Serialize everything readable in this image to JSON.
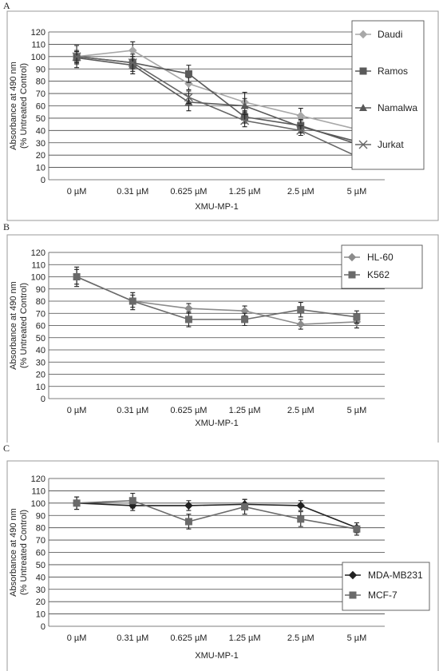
{
  "chart_data": [
    {
      "panel": "A",
      "type": "line",
      "categories": [
        "0 µM",
        "0.31 µM",
        "0.625 µM",
        "1.25 µM",
        "2.5 µM",
        "5 µM"
      ],
      "xlabel": "XMU-MP-1",
      "ylabel": "Absorbance at 490 nm\n(% Untreated Control)",
      "ylim": [
        0,
        120
      ],
      "yticks": [
        0,
        10,
        20,
        30,
        40,
        50,
        60,
        70,
        80,
        90,
        100,
        110,
        120
      ],
      "grid": true,
      "legend": "top-right, boxed",
      "series": [
        {
          "name": "Daudi",
          "marker": "diamond",
          "color": "#a8a8a8",
          "values": [
            100,
            105,
            78,
            63,
            52,
            41
          ],
          "errors": [
            5,
            7,
            5,
            8,
            6,
            10
          ]
        },
        {
          "name": "Ramos",
          "marker": "square",
          "color": "#5a5a5a",
          "values": [
            100,
            95,
            86,
            51,
            44,
            29
          ],
          "errors": [
            9,
            7,
            7,
            5,
            5,
            6
          ]
        },
        {
          "name": "Namalwa",
          "marker": "triangle",
          "color": "#585858",
          "values": [
            99,
            93,
            63,
            60,
            43,
            31
          ],
          "errors": [
            5,
            7,
            7,
            6,
            5,
            6
          ]
        },
        {
          "name": "Jurkat",
          "marker": "x",
          "color": "#666666",
          "values": [
            100,
            95,
            67,
            48,
            40,
            19
          ],
          "errors": [
            4,
            5,
            5,
            5,
            4,
            6
          ]
        }
      ]
    },
    {
      "panel": "B",
      "type": "line",
      "categories": [
        "0 µM",
        "0.31 µM",
        "0.625 µM",
        "1.25 µM",
        "2.5 µM",
        "5 µM"
      ],
      "xlabel": "XMU-MP-1",
      "ylabel": "Absorbance at 490 nm\n(% Untreated Control)",
      "ylim": [
        0,
        120
      ],
      "yticks": [
        0,
        10,
        20,
        30,
        40,
        50,
        60,
        70,
        80,
        90,
        100,
        110,
        120
      ],
      "grid": true,
      "legend": "top-right, boxed",
      "series": [
        {
          "name": "HL-60",
          "marker": "diamond",
          "color": "#8c8c8c",
          "values": [
            100,
            80,
            74,
            72,
            61,
            63
          ],
          "errors": [
            6,
            5,
            4,
            4,
            4,
            5
          ]
        },
        {
          "name": "K562",
          "marker": "square",
          "color": "#6a6a6a",
          "values": [
            100,
            80,
            65,
            65,
            73,
            67
          ],
          "errors": [
            8,
            7,
            6,
            5,
            6,
            5
          ]
        }
      ]
    },
    {
      "panel": "C",
      "type": "line",
      "categories": [
        "0 µM",
        "0.31 µM",
        "0.625 µM",
        "1.25 µM",
        "2.5 µM",
        "5 µM"
      ],
      "xlabel": "XMU-MP-1",
      "ylabel": "Absorbance at 490 nm\n(% Untreated Control)",
      "ylim": [
        0,
        120
      ],
      "yticks": [
        0,
        10,
        20,
        30,
        40,
        50,
        60,
        70,
        80,
        90,
        100,
        110,
        120
      ],
      "grid": true,
      "legend": "bottom-right, boxed",
      "series": [
        {
          "name": "MDA-MB231",
          "marker": "diamond",
          "color": "#222222",
          "values": [
            100,
            98,
            98,
            99,
            98,
            80
          ],
          "errors": [
            5,
            4,
            4,
            4,
            4,
            4
          ]
        },
        {
          "name": "MCF-7",
          "marker": "square",
          "color": "#6a6a6a",
          "values": [
            100,
            102,
            85,
            97,
            87,
            79
          ],
          "errors": [
            5,
            6,
            6,
            6,
            6,
            5
          ]
        }
      ]
    }
  ]
}
